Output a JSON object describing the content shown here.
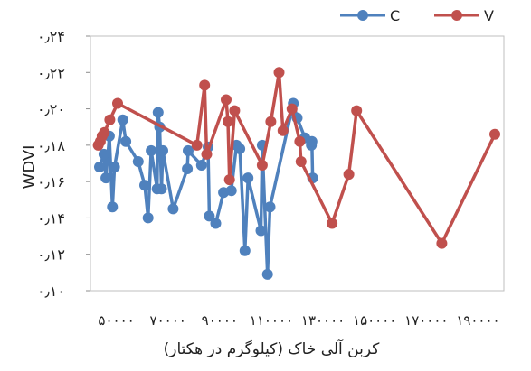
{
  "chart_data": {
    "type": "scatter",
    "xlabel": "کربن آلی خاک (کیلوگرم در هکتار)",
    "ylabel": "WDVI",
    "xlim": [
      40000,
      200000
    ],
    "ylim": [
      0.1,
      0.24
    ],
    "x_ticks": [
      50000,
      70000,
      90000,
      110000,
      130000,
      150000,
      170000,
      190000
    ],
    "x_tick_labels": [
      "۵۰۰۰۰",
      "۷۰۰۰۰",
      "۹۰۰۰۰",
      "۱۱۰۰۰۰",
      "۱۳۰۰۰۰",
      "۱۵۰۰۰۰",
      "۱۷۰۰۰۰",
      "۱۹۰۰۰۰"
    ],
    "y_ticks": [
      0.1,
      0.12,
      0.14,
      0.16,
      0.18,
      0.2,
      0.22,
      0.24
    ],
    "y_tick_labels": [
      "۰٫۱۰",
      "۰٫۱۲",
      "۰٫۱۴",
      "۰٫۱۶",
      "۰٫۱۸",
      "۰٫۲۰",
      "۰٫۲۲",
      "۰٫۲۴"
    ],
    "legend_position": "top-right",
    "series": [
      {
        "name": "C",
        "color": "#4f81bd",
        "points": [
          [
            43500,
            0.168
          ],
          [
            45200,
            0.175
          ],
          [
            46000,
            0.162
          ],
          [
            47300,
            0.185
          ],
          [
            48500,
            0.146
          ],
          [
            49300,
            0.168
          ],
          [
            52500,
            0.194
          ],
          [
            53700,
            0.182
          ],
          [
            58500,
            0.171
          ],
          [
            61000,
            0.158
          ],
          [
            62300,
            0.14
          ],
          [
            63500,
            0.177
          ],
          [
            65800,
            0.156
          ],
          [
            66200,
            0.198
          ],
          [
            66800,
            0.19
          ],
          [
            67500,
            0.156
          ],
          [
            68000,
            0.177
          ],
          [
            72000,
            0.145
          ],
          [
            77500,
            0.167
          ],
          [
            77800,
            0.177
          ],
          [
            83000,
            0.169
          ],
          [
            85500,
            0.179
          ],
          [
            86000,
            0.141
          ],
          [
            88500,
            0.137
          ],
          [
            91500,
            0.154
          ],
          [
            94500,
            0.155
          ],
          [
            96500,
            0.18
          ],
          [
            97800,
            0.178
          ],
          [
            99800,
            0.122
          ],
          [
            101000,
            0.162
          ],
          [
            106000,
            0.133
          ],
          [
            106500,
            0.18
          ],
          [
            108500,
            0.109
          ],
          [
            109500,
            0.146
          ],
          [
            118500,
            0.203
          ],
          [
            120000,
            0.195
          ],
          [
            123000,
            0.184
          ],
          [
            125500,
            0.18
          ],
          [
            125700,
            0.182
          ],
          [
            126000,
            0.162
          ]
        ]
      },
      {
        "name": "V",
        "color": "#c0504d",
        "points": [
          [
            43000,
            0.18
          ],
          [
            43800,
            0.182
          ],
          [
            44500,
            0.185
          ],
          [
            45400,
            0.187
          ],
          [
            47500,
            0.194
          ],
          [
            50500,
            0.203
          ],
          [
            81200,
            0.18
          ],
          [
            84200,
            0.213
          ],
          [
            85000,
            0.175
          ],
          [
            92500,
            0.205
          ],
          [
            93200,
            0.193
          ],
          [
            93800,
            0.161
          ],
          [
            95800,
            0.199
          ],
          [
            106500,
            0.169
          ],
          [
            109800,
            0.193
          ],
          [
            113000,
            0.22
          ],
          [
            114500,
            0.188
          ],
          [
            118000,
            0.2
          ],
          [
            121000,
            0.182
          ],
          [
            121500,
            0.171
          ],
          [
            133500,
            0.137
          ],
          [
            140000,
            0.164
          ],
          [
            143000,
            0.199
          ],
          [
            176000,
            0.126
          ],
          [
            196500,
            0.186
          ]
        ]
      }
    ]
  }
}
